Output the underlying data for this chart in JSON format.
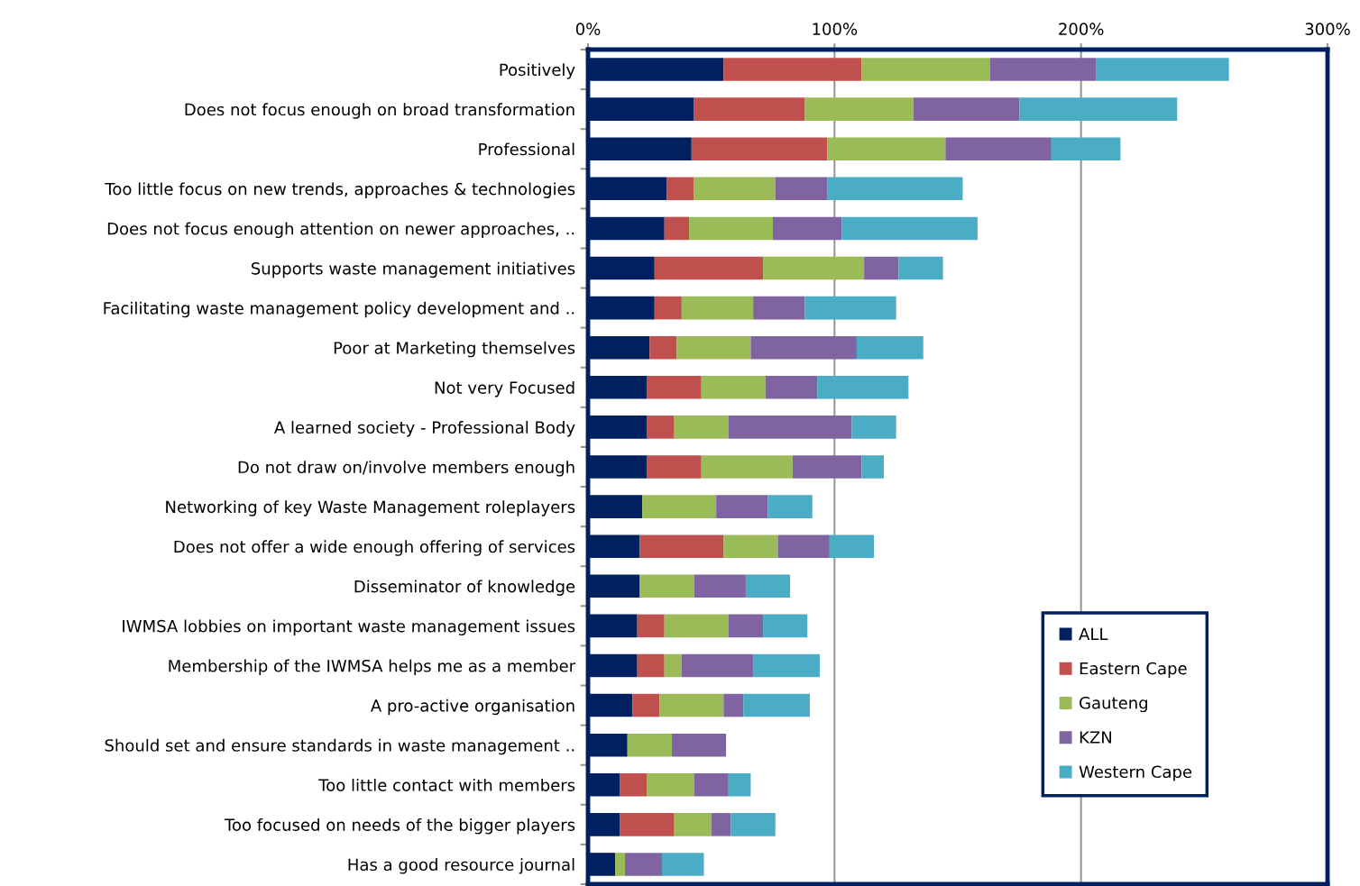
{
  "chart_data": {
    "type": "bar",
    "orientation": "horizontal",
    "stacked": true,
    "categories": [
      "Positively",
      "Does not focus enough on broad transformation",
      "Professional",
      "Too little focus on new trends, approaches & technologies",
      "Does not focus enough attention on newer approaches, ..",
      "Supports waste management initiatives",
      "Facilitating waste management policy development and ..",
      "Poor at Marketing themselves",
      "Not very Focused",
      "A learned society - Professional Body",
      "Do not draw on/involve members enough",
      "Networking of key Waste Management roleplayers",
      "Does not offer a wide enough offering of services",
      "Disseminator of knowledge",
      "IWMSA lobbies on important waste management issues",
      "Membership of the IWMSA helps me as a member",
      "A pro-active organisation",
      "Should set and ensure standards in waste management ..",
      "Too little contact with members",
      "Too focused on needs of the bigger players",
      "Has a good resource journal"
    ],
    "series": [
      {
        "name": "ALL",
        "color": "#002060",
        "values": [
          55,
          43,
          42,
          32,
          31,
          27,
          27,
          25,
          24,
          24,
          24,
          22,
          21,
          21,
          20,
          20,
          18,
          16,
          13,
          13,
          11
        ]
      },
      {
        "name": "Eastern Cape",
        "color": "#c0504d",
        "values": [
          56,
          45,
          55,
          11,
          10,
          44,
          11,
          11,
          22,
          11,
          22,
          null,
          34,
          null,
          11,
          11,
          11,
          null,
          11,
          22,
          null
        ]
      },
      {
        "name": "Gauteng",
        "color": "#9bbb59",
        "values": [
          52,
          44,
          48,
          33,
          34,
          41,
          29,
          30,
          26,
          22,
          37,
          30,
          22,
          22,
          26,
          7,
          26,
          18,
          19,
          15,
          4
        ]
      },
      {
        "name": "KZN",
        "color": "#8064a2",
        "values": [
          43,
          43,
          43,
          21,
          28,
          14,
          21,
          43,
          21,
          50,
          28,
          21,
          21,
          21,
          14,
          29,
          8,
          22,
          14,
          8,
          15
        ]
      },
      {
        "name": "Western Cape",
        "color": "#4bacc6",
        "values": [
          54,
          64,
          28,
          55,
          55,
          18,
          37,
          27,
          37,
          18,
          9,
          18,
          18,
          18,
          18,
          27,
          27,
          null,
          9,
          18,
          17
        ]
      }
    ],
    "xlim": [
      0,
      300
    ],
    "xticks": [
      {
        "value": 0,
        "label": "0%"
      },
      {
        "value": 100,
        "label": "100%"
      },
      {
        "value": 200,
        "label": "200%"
      },
      {
        "value": 300,
        "label": "300%"
      }
    ],
    "grid": "x",
    "legend": "bottom right"
  }
}
